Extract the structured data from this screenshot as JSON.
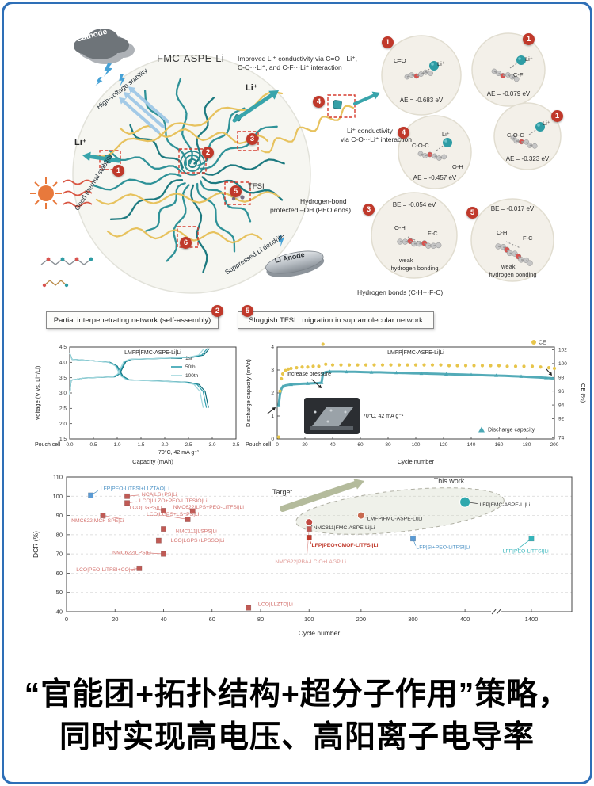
{
  "meta": {
    "border_color": "#2e6fb7",
    "background": "#ffffff",
    "teal": "#2f9298",
    "yellow_chain": "#e7c25e",
    "badge_red": "#c0392b"
  },
  "schematic": {
    "cathode": "Cathode",
    "high_voltage": "High-voltage stability",
    "thermal": "Good thermal stability",
    "fmc": "FMC-ASPE-Li",
    "li_top": "Li⁺",
    "li_left": "Li⁺",
    "tfsi": "TFSI⁻",
    "anode": "Li Anode",
    "suppressed": "Suppressed Li dendrite",
    "improved_l1": "Improved Li⁺ conductivity via C=O···Li⁺,",
    "improved_l2": "C-O···Li⁺, and C-F···Li⁺ interaction",
    "cond_l1": "Li⁺ conductivity",
    "cond_l2": "via C-O···Li⁺ interaction",
    "hbond_l1": "Hydrogen-bond",
    "hbond_l2": "protected –OH (PEO ends)",
    "hbonds_bottom": "Hydrogen bonds (C-H···F-C)",
    "badge1": "1",
    "badge2": "2",
    "badge3": "3",
    "badge4": "4",
    "badge5": "5",
    "badge6": "6",
    "callout2": "Partial interpenetrating network (self-assembly)",
    "callout5": "Sluggish TFSI⁻ migration in supramolecular network",
    "bubbles": [
      {
        "badge": "1",
        "bond": "C=O",
        "ion": "Li⁺",
        "energy": "AE = -0.683 eV"
      },
      {
        "badge": "1",
        "bond": "C-F",
        "ion": "Li⁺",
        "energy": "AE = -0.079 eV"
      },
      {
        "badge": "1",
        "bond": "C-O-C",
        "ion": "Li⁺",
        "energy": "AE = -0.323 eV"
      },
      {
        "badge": "4",
        "bond": "C-O-C",
        "bond2": "O-H",
        "ion": "Li⁺",
        "energy": "AE = -0.457 eV"
      },
      {
        "badge": "3",
        "bond": "O-H",
        "bond2": "F-C",
        "energy": "BE = -0.054 eV",
        "note1": "weak",
        "note2": "hydrogen bonding"
      },
      {
        "badge": "5",
        "bond": "C-H",
        "bond2": "F-C",
        "energy": "BE = -0.017 eV",
        "note1": "weak",
        "note2": "hydrogen bonding"
      }
    ]
  },
  "chart_data": [
    {
      "id": "voltage_profile",
      "type": "line",
      "title": "LMFP|FMC-ASPE-Li|Li",
      "xlabel": "Capacity (mAh)",
      "ylabel": "Voltage (V vs. Li⁺/Li)",
      "xlim": [
        0,
        3.5
      ],
      "xstep": 0.5,
      "ylim": [
        1.5,
        4.5
      ],
      "ystep": 0.5,
      "note_left": "Pouch cell",
      "note_right": "70°C, 42 mA g⁻¹",
      "colors": [
        "#0d6d7a",
        "#2f9fae",
        "#9fd6dc"
      ],
      "series": [
        {
          "name": "1st",
          "scale": 1.0
        },
        {
          "name": "50th",
          "scale": 0.985
        },
        {
          "name": "100th",
          "scale": 0.962
        }
      ],
      "charge": [
        [
          0,
          2.95
        ],
        [
          0.03,
          3.42
        ],
        [
          0.3,
          3.49
        ],
        [
          0.95,
          3.53
        ],
        [
          1.05,
          3.62
        ],
        [
          1.18,
          4.02
        ],
        [
          1.3,
          4.1
        ],
        [
          2.2,
          4.14
        ],
        [
          2.6,
          4.17
        ],
        [
          2.82,
          4.24
        ],
        [
          2.9,
          4.38
        ],
        [
          2.94,
          4.45
        ]
      ],
      "discharge": [
        [
          0,
          4.3
        ],
        [
          0.05,
          4.1
        ],
        [
          0.5,
          4.05
        ],
        [
          0.85,
          4.0
        ],
        [
          1.0,
          3.88
        ],
        [
          1.12,
          3.55
        ],
        [
          1.25,
          3.43
        ],
        [
          1.9,
          3.39
        ],
        [
          2.5,
          3.35
        ],
        [
          2.72,
          3.28
        ],
        [
          2.85,
          3.05
        ],
        [
          2.92,
          2.52
        ]
      ]
    },
    {
      "id": "cycling",
      "type": "line+scatter",
      "title": "LMFP|FMC-ASPE-Li|Li",
      "xlabel": "Cycle number",
      "ylabel_left": "Discharge capacity (mAh)",
      "ylabel_right": "CE (%)",
      "xlim": [
        0,
        200
      ],
      "xstep": 20,
      "ylim_left": [
        0,
        4
      ],
      "ystep_left": 1,
      "right_ticks": [
        "102",
        "100",
        "98",
        "96",
        "94",
        "92",
        "74"
      ],
      "legend_ce": "CE",
      "legend_capacity": "Discharge capacity",
      "annotation": "Increase pressure",
      "note": "70°C, 42 mA g⁻¹",
      "note2": "Pouch cell",
      "capacity_color": "#4aa7b4",
      "ce_color": "#e7c54b",
      "capacity": [
        [
          1,
          1.45
        ],
        [
          2,
          1.95
        ],
        [
          3,
          2.18
        ],
        [
          4,
          2.28
        ],
        [
          6,
          2.33
        ],
        [
          8,
          2.35
        ],
        [
          10,
          2.37
        ],
        [
          14,
          2.39
        ],
        [
          18,
          2.4
        ],
        [
          22,
          2.41
        ],
        [
          26,
          2.42
        ],
        [
          30,
          2.43
        ],
        [
          32,
          2.45
        ],
        [
          33,
          2.86
        ],
        [
          35,
          2.91
        ],
        [
          38,
          2.93
        ],
        [
          42,
          2.93
        ],
        [
          46,
          2.93
        ],
        [
          50,
          2.92
        ],
        [
          56,
          2.92
        ],
        [
          62,
          2.91
        ],
        [
          68,
          2.9
        ],
        [
          74,
          2.9
        ],
        [
          80,
          2.89
        ],
        [
          86,
          2.88
        ],
        [
          92,
          2.87
        ],
        [
          98,
          2.86
        ],
        [
          104,
          2.85
        ],
        [
          110,
          2.84
        ],
        [
          116,
          2.83
        ],
        [
          122,
          2.82
        ],
        [
          128,
          2.81
        ],
        [
          134,
          2.8
        ],
        [
          140,
          2.79
        ],
        [
          146,
          2.78
        ],
        [
          152,
          2.77
        ],
        [
          158,
          2.76
        ],
        [
          164,
          2.75
        ],
        [
          170,
          2.73
        ],
        [
          176,
          2.72
        ],
        [
          182,
          2.7
        ],
        [
          188,
          2.68
        ],
        [
          194,
          2.66
        ],
        [
          200,
          2.63
        ]
      ],
      "ce": [
        [
          1,
          74.5
        ],
        [
          2,
          96
        ],
        [
          3,
          97.8
        ],
        [
          4,
          98.5
        ],
        [
          6,
          99
        ],
        [
          8,
          99.2
        ],
        [
          10,
          99.3
        ],
        [
          14,
          99.4
        ],
        [
          18,
          99.5
        ],
        [
          22,
          99.5
        ],
        [
          26,
          99.6
        ],
        [
          30,
          99.6
        ],
        [
          33,
          102.8
        ],
        [
          35,
          99.9
        ],
        [
          40,
          99.8
        ],
        [
          46,
          99.8
        ],
        [
          52,
          99.8
        ],
        [
          58,
          99.8
        ],
        [
          64,
          99.8
        ],
        [
          70,
          99.8
        ],
        [
          76,
          99.8
        ],
        [
          82,
          99.8
        ],
        [
          88,
          99.8
        ],
        [
          94,
          99.8
        ],
        [
          100,
          99.8
        ],
        [
          106,
          99.8
        ],
        [
          112,
          99.8
        ],
        [
          118,
          99.8
        ],
        [
          124,
          99.7
        ],
        [
          130,
          99.7
        ],
        [
          136,
          99.7
        ],
        [
          142,
          99.7
        ],
        [
          148,
          99.7
        ],
        [
          154,
          99.7
        ],
        [
          160,
          99.7
        ],
        [
          166,
          99.6
        ],
        [
          172,
          99.6
        ],
        [
          178,
          99.6
        ],
        [
          184,
          99.6
        ],
        [
          190,
          99.5
        ],
        [
          196,
          99.4
        ],
        [
          200,
          99.3
        ]
      ]
    },
    {
      "id": "dcr_comparison",
      "type": "scatter",
      "xlabel": "Cycle number",
      "ylabel": "DCR (%)",
      "ylim": [
        40,
        110
      ],
      "ystep": 10,
      "xticks": [
        0,
        20,
        40,
        60,
        80,
        100,
        200,
        300,
        400,
        1400
      ],
      "target_label": "Target",
      "thiswork_label": "This work",
      "points": [
        {
          "label": "LFP|PEO-LiTFSI+LLZTAO|Li",
          "x": 10,
          "y": 100.5,
          "m": "sq",
          "c": "#5b9bd5",
          "lx": 14,
          "ly": 104,
          "lc": "#4a90c4",
          "leader": true,
          "ax": 13,
          "ay": 102.8
        },
        {
          "label": "NCA|LS+PS|Li",
          "x": 25,
          "y": 100,
          "m": "sq",
          "c": "#c05a55",
          "lx": 31,
          "ly": 101,
          "lc": "#d4736f",
          "leader": true,
          "ax": 30,
          "ay": 100.6
        },
        {
          "label": "LCO|LLZO+PEO-LiTFSIO|Li",
          "x": 25,
          "y": 96.5,
          "m": "sq",
          "c": "#c05a55",
          "lx": 30,
          "ly": 97.6,
          "lc": "#d4736f",
          "leader": true,
          "ax": 29,
          "ay": 97.2
        },
        {
          "label": "LCO|LGPS|Li",
          "x": 40,
          "y": 92.5,
          "m": "sq",
          "c": "#c05a55",
          "lx": 26,
          "ly": 94.2,
          "lc": "#d4736f",
          "leader": true,
          "ax": 36,
          "ay": 93.3
        },
        {
          "label": "NMC622|LPS+PEO-LiTFSI|Li",
          "x": 52,
          "y": 92.3,
          "m": "sq",
          "c": "#c05a55",
          "lx": 44,
          "ly": 94.4,
          "lc": "#d4736f",
          "leader": true,
          "ax": 50,
          "ay": 93.5
        },
        {
          "label": "LCO|LGPS+LS+PS|Li",
          "x": 50,
          "y": 88,
          "m": "sq",
          "c": "#c05a55",
          "lx": 33,
          "ly": 90.6,
          "lc": "#d4736f",
          "leader": true,
          "ax": 41,
          "ay": 89.8
        },
        {
          "label": "NMC622|MCF-SPE|Li",
          "x": 15,
          "y": 90,
          "m": "sq",
          "c": "#c05a55",
          "lx": 2,
          "ly": 87.4,
          "lc": "#d4736f",
          "leader": true,
          "ax": 23,
          "ay": 88.2
        },
        {
          "label": "NMC111|LSPS|Li",
          "x": 40,
          "y": 83,
          "m": "sq",
          "c": "#c05a55",
          "lx": 45,
          "ly": 81.8,
          "lc": "#d4736f"
        },
        {
          "label": "LCO|LGPS+LPSSO|Li",
          "x": 38,
          "y": 77,
          "m": "sq",
          "c": "#c05a55",
          "lx": 43,
          "ly": 77,
          "lc": "#d4736f"
        },
        {
          "label": "NMC622|LPS|Li",
          "x": 40,
          "y": 70,
          "m": "sq",
          "c": "#c05a55",
          "lx": 19,
          "ly": 70.6,
          "lc": "#d4736f",
          "leader": true,
          "ax": 33,
          "ay": 70.6
        },
        {
          "label": "LCO|PEO-LiTFSI+CO|Li",
          "x": 30,
          "y": 62.5,
          "m": "sq",
          "c": "#c05a55",
          "lx": 4,
          "ly": 61.8,
          "lc": "#d4736f",
          "leader": true,
          "ax": 26,
          "ay": 61.8
        },
        {
          "label": "LCO|LLZTO|Li",
          "x": 75,
          "y": 42,
          "m": "sq",
          "c": "#c05a55",
          "lx": 79,
          "ly": 44,
          "lc": "#d4736f"
        },
        {
          "label": "NMC622|PBA-LCIO+LAGP|Li",
          "x": 100,
          "y": 83,
          "m": "sq",
          "c": "#c05a55",
          "lx": 86,
          "ly": 66,
          "lc": "#e09a96",
          "leader": true,
          "ax": 99,
          "ay": 67.2
        },
        {
          "label": "LFP|PEO+CMOF-LiTFSI|Li",
          "x": 100,
          "y": 78.5,
          "m": "sq",
          "c": "#c0392b",
          "lx": 105,
          "ly": 74.6,
          "lc": "#c0392b",
          "bold": true,
          "leader": true,
          "ax": 104,
          "ay": 75.4
        },
        {
          "label": "NMC811|FMC-ASPE-Li|Li",
          "x": 100,
          "y": 86.5,
          "m": "ci",
          "c": "#c14a42",
          "lx": 108,
          "ly": 83.6,
          "lc": "#333333",
          "leader": true,
          "ax": 106,
          "ay": 84.4
        },
        {
          "label": "LMFP|FMC-ASPE-Li|Li",
          "x": 200,
          "y": 90,
          "m": "ci",
          "c": "#c86a50",
          "lx": 212,
          "ly": 88.4,
          "lc": "#333333",
          "leader": true,
          "ax": 210,
          "ay": 89
        },
        {
          "label": "LFP|FMC-ASPE-Li|Li",
          "x": 400,
          "y": 97,
          "m": "ci",
          "c": "#2fa8ad",
          "lx": 428,
          "ly": 95.6,
          "lc": "#333333",
          "leader": true,
          "ax": 424,
          "ay": 96.2,
          "big": true
        },
        {
          "label": "LFP|Si+PEO-LiTFSI|Li",
          "x": 300,
          "y": 78,
          "m": "sq",
          "c": "#5b9bd5",
          "lx": 306,
          "ly": 73.6,
          "lc": "#4a90c4",
          "leader": true,
          "ax": 305,
          "ay": 74.4
        },
        {
          "label": "LFP|PEO-LiTFSI|Li",
          "x": 1400,
          "y": 78,
          "m": "sq",
          "c": "#35b5bb",
          "lx": 1258,
          "ly": 71.5,
          "lc": "#35b5bb",
          "leader": true,
          "ax": 1332,
          "ay": 72.6
        }
      ]
    }
  ],
  "banner": {
    "line1": "“官能团+拓扑结构+超分子作用”策略，",
    "line2": "同时实现高电压、高阳离子电导率"
  }
}
